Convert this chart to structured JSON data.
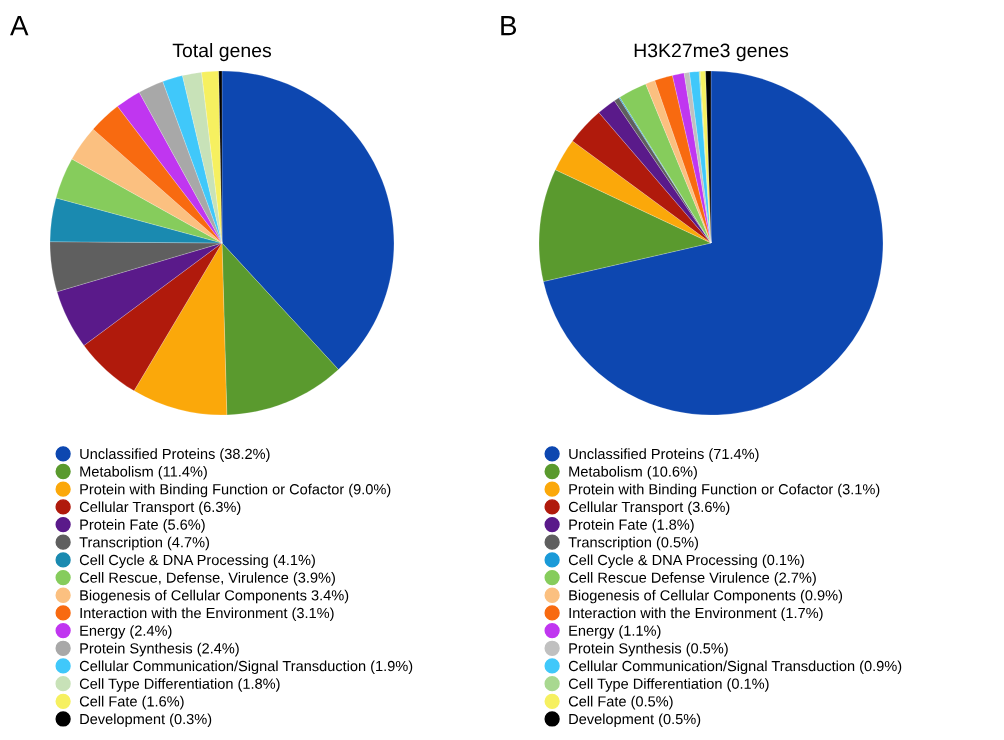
{
  "chart_data": [
    {
      "type": "pie",
      "title": "Total genes",
      "annotations": [
        "A"
      ],
      "legend": "bottom",
      "marker": "circle",
      "categories": [
        "Unclassified Proteins (38.2%)",
        "Metabolism (11.4%)",
        "Protein with Binding Function or Cofactor (9.0%)",
        "Cellular Transport (6.3%)",
        "Protein Fate (5.6%)",
        "Transcription (4.7%)",
        "Cell Cycle & DNA Processing (4.1%)",
        "Cell Rescue, Defense, Virulence (3.9%)",
        "Biogenesis of Cellular Components 3.4%)",
        "Interaction with the Environment (3.1%)",
        "Energy (2.4%)",
        "Protein Synthesis (2.4%)",
        "Cellular Communication/Signal Transduction (1.9%)",
        "Cell Type Differentiation (1.8%)",
        "Cell Fate (1.6%)",
        "Development (0.3%)"
      ],
      "values": [
        38.2,
        11.4,
        9.0,
        6.3,
        5.6,
        4.7,
        4.1,
        3.9,
        3.4,
        3.1,
        2.4,
        2.4,
        1.9,
        1.8,
        1.6,
        0.3
      ],
      "colors": [
        "#0d47b0",
        "#5a9a2e",
        "#fba80a",
        "#b01a0c",
        "#5a1a8a",
        "#5f5f5f",
        "#1a8ab0",
        "#86cc5c",
        "#fbc080",
        "#f86a10",
        "#c036f0",
        "#a8a8a8",
        "#40c8fa",
        "#c8e2b8",
        "#f6f060",
        "#000000"
      ]
    },
    {
      "type": "pie",
      "title": "H3K27me3 genes",
      "annotations": [
        "B"
      ],
      "legend": "bottom",
      "marker": "circle",
      "categories": [
        "Unclassified Proteins (71.4%)",
        "Metabolism (10.6%)",
        "Protein with Binding Function or Cofactor (3.1%)",
        "Cellular Transport (3.6%)",
        "Protein Fate (1.8%)",
        "Transcription (0.5%)",
        "Cell Cycle & DNA Processing (0.1%)",
        "Cell Rescue Defense Virulence (2.7%)",
        "Biogenesis of Cellular Components (0.9%)",
        "Interaction with the Environment (1.7%)",
        "Energy (1.1%)",
        "Protein Synthesis (0.5%)",
        "Cellular Communication/Signal Transduction (0.9%)",
        "Cell Type Differentiation (0.1%)",
        "Cell Fate (0.5%)",
        "Development (0.5%)"
      ],
      "values": [
        71.4,
        10.6,
        3.1,
        3.6,
        1.8,
        0.5,
        0.1,
        2.7,
        0.9,
        1.7,
        1.1,
        0.5,
        0.9,
        0.1,
        0.5,
        0.5
      ],
      "colors": [
        "#0d47b0",
        "#5a9a2e",
        "#fba80a",
        "#b01a0c",
        "#5a1a8a",
        "#5f5f5f",
        "#1a9ad8",
        "#86cc5c",
        "#fbc080",
        "#f86a10",
        "#c036f0",
        "#c0c0c0",
        "#40c8fa",
        "#a8d890",
        "#f6f060",
        "#000000"
      ]
    }
  ]
}
